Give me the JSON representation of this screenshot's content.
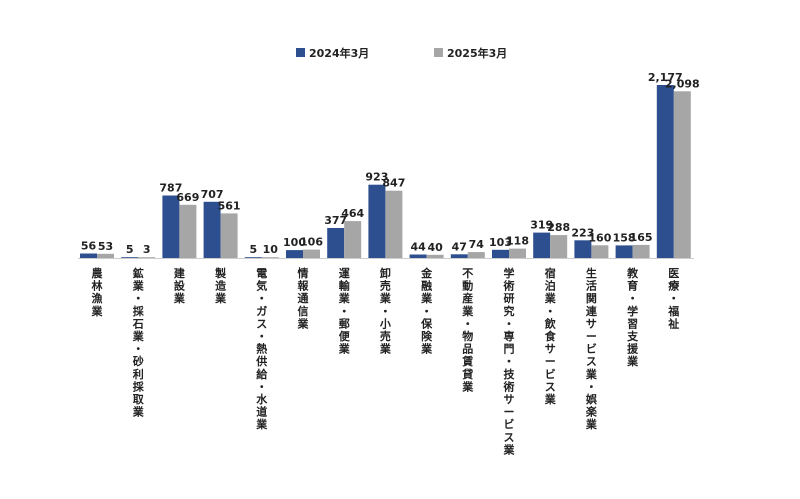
{
  "chart_data": {
    "type": "bar",
    "title": "",
    "xlabel": "",
    "ylabel": "",
    "ylim": [
      0,
      2200
    ],
    "grid": false,
    "legend": "top-center",
    "categories": [
      "農林漁業",
      "鉱業・採石業・砂利採取業",
      "建設業",
      "製造業",
      "電気・ガス・熱供給・水道業",
      "情報通信業",
      "運輸業・郵便業",
      "卸売業・小売業",
      "金融業・保険業",
      "不動産業・物品賃貸業",
      "学術研究・専門・技術サービス業",
      "宿泊業・飲食サービス業",
      "生活関連サービス業・娯楽業",
      "教育・学習支援業",
      "医療・福祉"
    ],
    "series": [
      {
        "name": "2024年3月",
        "color": "#2e4f8f",
        "values": [
          56,
          5,
          787,
          707,
          5,
          100,
          377,
          923,
          44,
          47,
          103,
          319,
          223,
          158,
          2177
        ],
        "labels": [
          "56",
          "5",
          "787",
          "707",
          "5",
          "100",
          "377",
          "923",
          "44",
          "47",
          "103",
          "319",
          "223",
          "158",
          "2,177"
        ]
      },
      {
        "name": "2025年3月",
        "color": "#a6a6a6",
        "values": [
          53,
          3,
          669,
          561,
          10,
          106,
          464,
          847,
          40,
          74,
          118,
          288,
          160,
          165,
          2098
        ],
        "labels": [
          "53",
          "3",
          "669",
          "561",
          "10",
          "106",
          "464",
          "847",
          "40",
          "74",
          "118",
          "288",
          "160",
          "165",
          "2,098"
        ]
      }
    ]
  }
}
